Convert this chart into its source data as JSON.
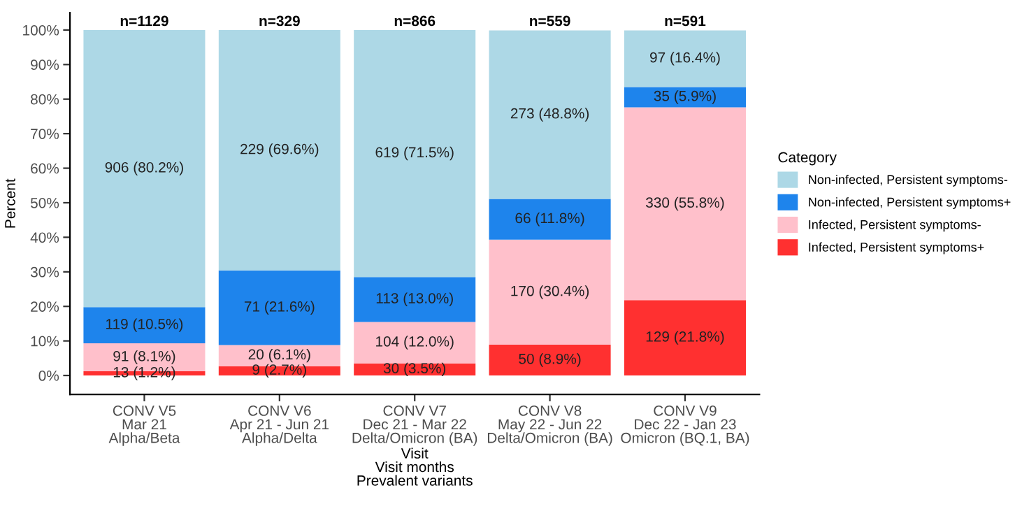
{
  "chart_data": {
    "type": "bar",
    "stacked": true,
    "xlabel": "Visit\nVisit months\nPrevalent variants",
    "ylabel": "Percent",
    "legend_title": "Category",
    "categories": [
      "CONV V5\nMar 21\nAlpha/Beta",
      "CONV V6\nApr 21 - Jun 21\nAlpha/Delta",
      "CONV V7\nDec 21 - Mar 22\nDelta/Omicron (BA)",
      "CONV V8\nMay 22 - Jun 22\nDelta/Omicron (BA)",
      "CONV V9\nDec 22 - Jan 23\nOmicron (BQ.1, BA)"
    ],
    "series": [
      {
        "name": "Infected, Persistent symptoms+",
        "color": "#ff3030",
        "values": [
          1.2,
          2.7,
          3.5,
          8.9,
          21.8
        ],
        "value_labels": [
          "13 (1.2%)",
          "9 (2.7%)",
          "30 (3.5%)",
          "50 (8.9%)",
          "129 (21.8%)"
        ]
      },
      {
        "name": "Infected, Persistent symptoms-",
        "color": "#ffc0cb",
        "values": [
          8.1,
          6.1,
          12.0,
          30.4,
          55.8
        ],
        "value_labels": [
          "91 (8.1%)",
          "20 (6.1%)",
          "104 (12.0%)",
          "170 (30.4%)",
          "330 (55.8%)"
        ]
      },
      {
        "name": "Non-infected, Persistent symptoms+",
        "color": "#1e84ec",
        "values": [
          10.5,
          21.6,
          13.0,
          11.8,
          5.9
        ],
        "value_labels": [
          "119 (10.5%)",
          "71 (21.6%)",
          "113 (13.0%)",
          "66 (11.8%)",
          "35 (5.9%)"
        ]
      },
      {
        "name": "Non-infected, Persistent symptoms-",
        "color": "#add8e6",
        "values": [
          80.2,
          69.6,
          71.5,
          48.8,
          16.4
        ],
        "value_labels": [
          "906 (80.2%)",
          "229 (69.6%)",
          "619 (71.5%)",
          "273 (48.8%)",
          "97 (16.4%)"
        ]
      }
    ],
    "annotations": [
      {
        "text": "n=1129",
        "x": "CONV V5\nMar 21\nAlpha/Beta",
        "y": 100
      },
      {
        "text": "n=329",
        "x": "CONV V6\nApr 21 - Jun 21\nAlpha/Delta",
        "y": 100
      },
      {
        "text": "n=866",
        "x": "CONV V7\nDec 21 - Mar 22\nDelta/Omicron (BA)",
        "y": 100
      },
      {
        "text": "n=559",
        "x": "CONV V8\nMay 22 - Jun 22\nDelta/Omicron (BA)",
        "y": 100
      },
      {
        "text": "n=591",
        "x": "CONV V9\nDec 22 - Jan 23\nOmicron (BQ.1, BA)",
        "y": 100
      }
    ],
    "ylim": [
      -5.5,
      105
    ],
    "yticks": [
      {
        "value": 0,
        "label": "0%"
      },
      {
        "value": 10,
        "label": "10%"
      },
      {
        "value": 20,
        "label": "20%"
      },
      {
        "value": 30,
        "label": "30%"
      },
      {
        "value": 40,
        "label": "40%"
      },
      {
        "value": 50,
        "label": "50%"
      },
      {
        "value": 60,
        "label": "60%"
      },
      {
        "value": 70,
        "label": "70%"
      },
      {
        "value": 80,
        "label": "80%"
      },
      {
        "value": 90,
        "label": "90%"
      },
      {
        "value": 100,
        "label": "100%"
      }
    ],
    "grid": false,
    "legend": "right"
  }
}
